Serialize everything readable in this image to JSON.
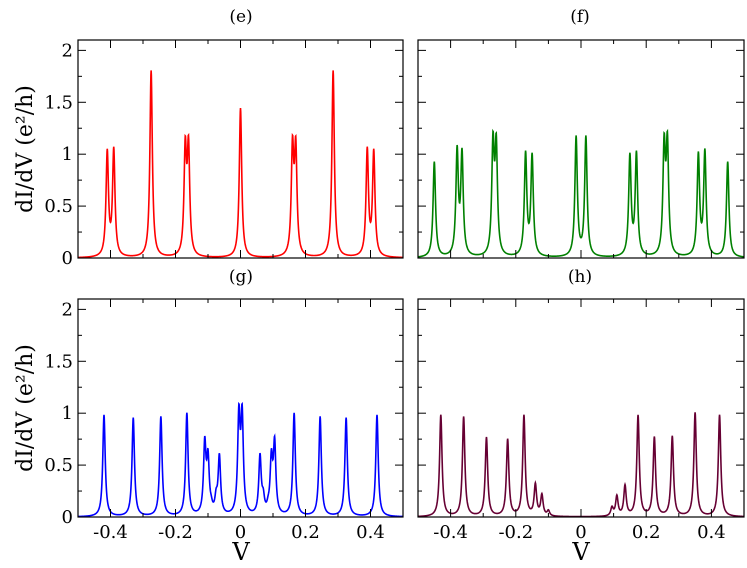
{
  "chart_data": [
    {
      "type": "line",
      "panel": "(e)",
      "title": "(e)",
      "color": "#ff0000",
      "xlim": [
        -0.5,
        0.5
      ],
      "ylim": [
        0,
        2.1
      ],
      "ylabel": "dI/dV (e²/h)",
      "xlabel": "",
      "yticks": [
        0,
        0.5,
        1,
        1.5,
        2
      ],
      "ytick_labels": [
        "0",
        "0.5",
        "1",
        "1.5",
        "2"
      ],
      "xtick_labels": [],
      "peaks": [
        {
          "x": -0.41,
          "y": 1.0
        },
        {
          "x": -0.39,
          "y": 1.02
        },
        {
          "x": -0.275,
          "y": 1.8
        },
        {
          "x": -0.17,
          "y": 1.0
        },
        {
          "x": -0.16,
          "y": 1.01
        },
        {
          "x": 0.0,
          "y": 1.44
        },
        {
          "x": 0.16,
          "y": 1.01
        },
        {
          "x": 0.17,
          "y": 1.0
        },
        {
          "x": 0.285,
          "y": 1.8
        },
        {
          "x": 0.39,
          "y": 1.02
        },
        {
          "x": 0.41,
          "y": 1.0
        }
      ]
    },
    {
      "type": "line",
      "panel": "(f)",
      "title": "(f)",
      "color": "#008000",
      "xlim": [
        -0.5,
        0.5
      ],
      "ylim": [
        0,
        2.1
      ],
      "yticks": [
        0,
        0.5,
        1,
        1.5,
        2
      ],
      "xtick_labels": [],
      "peaks": [
        {
          "x": -0.45,
          "y": 0.92
        },
        {
          "x": -0.38,
          "y": 1.0
        },
        {
          "x": -0.365,
          "y": 0.97
        },
        {
          "x": -0.27,
          "y": 1.04
        },
        {
          "x": -0.26,
          "y": 1.02
        },
        {
          "x": -0.17,
          "y": 0.98
        },
        {
          "x": -0.15,
          "y": 0.96
        },
        {
          "x": -0.015,
          "y": 1.15
        },
        {
          "x": 0.015,
          "y": 1.15
        },
        {
          "x": 0.15,
          "y": 0.96
        },
        {
          "x": 0.17,
          "y": 0.98
        },
        {
          "x": 0.255,
          "y": 1.02
        },
        {
          "x": 0.265,
          "y": 1.04
        },
        {
          "x": 0.36,
          "y": 0.97
        },
        {
          "x": 0.38,
          "y": 1.0
        },
        {
          "x": 0.45,
          "y": 0.92
        }
      ]
    },
    {
      "type": "line",
      "panel": "(g)",
      "title": "(g)",
      "color": "#0000ff",
      "xlim": [
        -0.5,
        0.5
      ],
      "ylim": [
        0,
        2.1
      ],
      "ylabel": "dI/dV (e²/h)",
      "xlabel": "V",
      "yticks": [
        0,
        0.5,
        1,
        1.5,
        2
      ],
      "ytick_labels": [
        "0",
        "0.5",
        "1",
        "1.5",
        "2"
      ],
      "xticks": [
        -0.4,
        -0.2,
        0,
        0.2,
        0.4
      ],
      "xtick_labels": [
        "-0.4",
        "-0.2",
        "0",
        "0.2",
        "0.4"
      ],
      "peaks": [
        {
          "x": -0.42,
          "y": 0.98
        },
        {
          "x": -0.33,
          "y": 0.95
        },
        {
          "x": -0.245,
          "y": 0.96
        },
        {
          "x": -0.165,
          "y": 0.99
        },
        {
          "x": -0.11,
          "y": 0.67
        },
        {
          "x": -0.1,
          "y": 0.51
        },
        {
          "x": -0.09,
          "y": 0.05
        },
        {
          "x": -0.075,
          "y": 0.14
        },
        {
          "x": -0.065,
          "y": 0.56
        },
        {
          "x": -0.005,
          "y": 0.92
        },
        {
          "x": 0.005,
          "y": 0.92
        },
        {
          "x": 0.06,
          "y": 0.56
        },
        {
          "x": 0.07,
          "y": 0.14
        },
        {
          "x": 0.085,
          "y": 0.05
        },
        {
          "x": 0.095,
          "y": 0.51
        },
        {
          "x": 0.105,
          "y": 0.67
        },
        {
          "x": 0.165,
          "y": 0.99
        },
        {
          "x": 0.245,
          "y": 0.96
        },
        {
          "x": 0.325,
          "y": 0.95
        },
        {
          "x": 0.42,
          "y": 0.98
        }
      ]
    },
    {
      "type": "line",
      "panel": "(h)",
      "title": "(h)",
      "color": "#660033",
      "xlim": [
        -0.5,
        0.5
      ],
      "ylim": [
        0,
        2.1
      ],
      "xlabel": "V",
      "yticks": [
        0,
        0.5,
        1,
        1.5,
        2
      ],
      "xticks": [
        -0.4,
        -0.2,
        0,
        0.2,
        0.4
      ],
      "xtick_labels": [
        "-0.4",
        "-0.2",
        "0",
        "0.2",
        "0.4"
      ],
      "peaks": [
        {
          "x": -0.43,
          "y": 0.98
        },
        {
          "x": -0.36,
          "y": 0.96
        },
        {
          "x": -0.29,
          "y": 0.76
        },
        {
          "x": -0.225,
          "y": 0.74
        },
        {
          "x": -0.175,
          "y": 0.97
        },
        {
          "x": -0.14,
          "y": 0.3
        },
        {
          "x": -0.12,
          "y": 0.2
        },
        {
          "x": -0.1,
          "y": 0.05
        },
        {
          "x": 0.095,
          "y": 0.08
        },
        {
          "x": 0.11,
          "y": 0.19
        },
        {
          "x": 0.135,
          "y": 0.29
        },
        {
          "x": 0.175,
          "y": 0.97
        },
        {
          "x": 0.225,
          "y": 0.76
        },
        {
          "x": 0.28,
          "y": 0.77
        },
        {
          "x": 0.35,
          "y": 1.0
        },
        {
          "x": 0.425,
          "y": 0.98
        }
      ]
    }
  ]
}
